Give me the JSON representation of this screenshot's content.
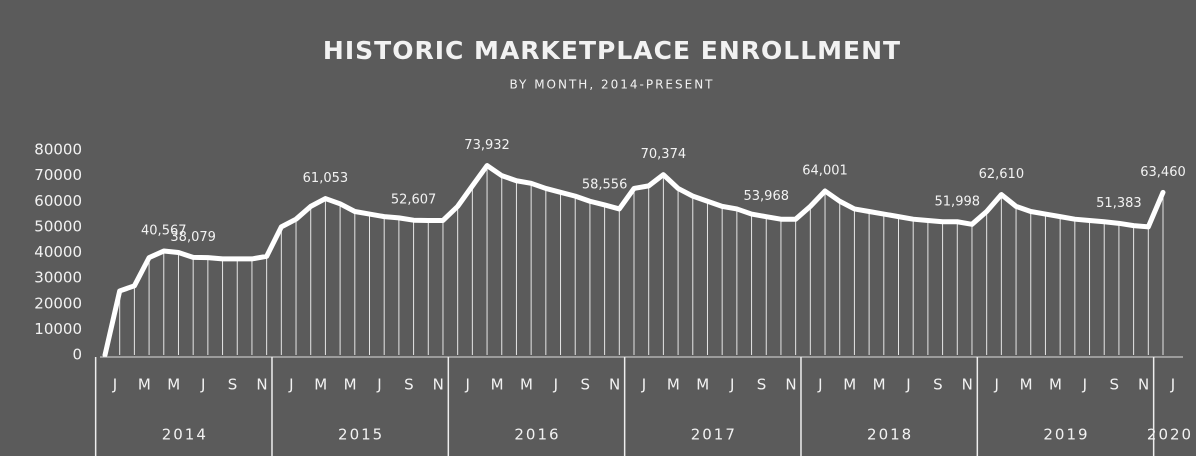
{
  "chart_data": {
    "type": "line",
    "title": "HISTORIC MARKETPLACE ENROLLMENT",
    "subtitle": "BY MONTH, 2014-PRESENT",
    "categories": [
      "J",
      null,
      "M",
      null,
      "M",
      null,
      "J",
      null,
      "S",
      null,
      "N",
      null,
      "J",
      null,
      "M",
      null,
      "M",
      null,
      "J",
      null,
      "S",
      null,
      "N",
      null,
      "J",
      null,
      "M",
      null,
      "M",
      null,
      "J",
      null,
      "S",
      null,
      "N",
      null,
      "J",
      null,
      "M",
      null,
      "M",
      null,
      "J",
      null,
      "S",
      null,
      "N",
      null,
      "J",
      null,
      "M",
      null,
      "M",
      null,
      "J",
      null,
      "S",
      null,
      "N",
      null,
      "J",
      null,
      "M",
      null,
      "M",
      null,
      "J",
      null,
      "S",
      null,
      "N",
      null,
      "J"
    ],
    "years": [
      "2014",
      "2015",
      "2016",
      "2017",
      "2018",
      "2019",
      "2020"
    ],
    "values": [
      0,
      25000,
      27000,
      38000,
      40567,
      40000,
      38079,
      38000,
      37500,
      37500,
      37500,
      38500,
      50000,
      53000,
      58000,
      61053,
      59000,
      56000,
      55000,
      54000,
      53500,
      52607,
      52500,
      52500,
      58000,
      66000,
      73932,
      70000,
      68000,
      67000,
      65000,
      63500,
      62000,
      60000,
      58556,
      57000,
      65000,
      66000,
      70374,
      65000,
      62000,
      60000,
      58000,
      57000,
      55000,
      53968,
      53000,
      53000,
      58000,
      64001,
      60000,
      57000,
      56000,
      55000,
      54000,
      53000,
      52500,
      52000,
      51998,
      51000,
      56000,
      62610,
      58000,
      56000,
      55000,
      54000,
      53000,
      52500,
      52000,
      51383,
      50500,
      50000,
      63460
    ],
    "value_labels": [
      null,
      null,
      null,
      null,
      "40,567",
      null,
      "38,079",
      null,
      null,
      null,
      null,
      null,
      null,
      null,
      null,
      "61,053",
      null,
      null,
      null,
      null,
      null,
      "52,607",
      null,
      null,
      null,
      null,
      "73,932",
      null,
      null,
      null,
      null,
      null,
      null,
      null,
      "58,556",
      null,
      null,
      null,
      "70,374",
      null,
      null,
      null,
      null,
      null,
      null,
      "53,968",
      null,
      null,
      null,
      "64,001",
      null,
      null,
      null,
      null,
      null,
      null,
      null,
      null,
      "51,998",
      null,
      null,
      "62,610",
      null,
      null,
      null,
      null,
      null,
      null,
      null,
      "51,383",
      null,
      null,
      "63,460"
    ],
    "color": "#ffffff",
    "ylim": [
      0,
      80000
    ],
    "yticks": [
      0,
      10000,
      20000,
      30000,
      40000,
      50000,
      60000,
      70000,
      80000
    ]
  }
}
